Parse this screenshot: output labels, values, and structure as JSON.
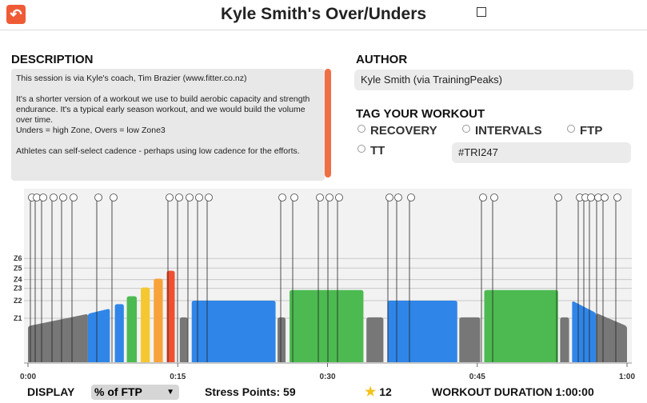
{
  "header": {
    "title": "Kyle Smith's Over/Unders"
  },
  "description": {
    "heading": "DESCRIPTION",
    "paragraphs": [
      "This session is via Kyle's coach, Tim Brazier (www.fitter.co.nz)",
      "It's a shorter version of a workout we use to build aerobic capacity and strength endurance. It's a typical early season workout, and we would build the volume over time.\nUnders = high Zone, Overs = low Zone3",
      "Athletes can self-select cadence - perhaps using low cadence for the efforts."
    ]
  },
  "author": {
    "heading": "AUTHOR",
    "name": "Kyle Smith (via TrainingPeaks)"
  },
  "tags": {
    "heading": "TAG YOUR WORKOUT",
    "options": [
      "RECOVERY",
      "INTERVALS",
      "FTP",
      "TT"
    ],
    "value": "#TRI247"
  },
  "chart_data": {
    "type": "workout",
    "xlim": [
      0,
      60
    ],
    "xticks": [
      {
        "value": 0,
        "label": "0:00"
      },
      {
        "value": 15,
        "label": "0:15"
      },
      {
        "value": 30,
        "label": "0:30"
      },
      {
        "value": 45,
        "label": "0:45"
      },
      {
        "value": 60,
        "label": "1:00"
      }
    ],
    "ylim": [
      0,
      190
    ],
    "yticks": [
      {
        "value": 50,
        "label": "Z1"
      },
      {
        "value": 70,
        "label": "Z2"
      },
      {
        "value": 84,
        "label": "Z3"
      },
      {
        "value": 94,
        "label": "Z4"
      },
      {
        "value": 107,
        "label": "Z5"
      },
      {
        "value": 118,
        "label": "Z6"
      }
    ],
    "segments": [
      {
        "start": 0,
        "end": 6,
        "power": [
          41,
          55
        ],
        "color": "#777777"
      },
      {
        "start": 6,
        "end": 8.2,
        "power": [
          55,
          61
        ],
        "color": "#2f86e8"
      },
      {
        "start": 8.7,
        "end": 9.6,
        "power": [
          66,
          66
        ],
        "color": "#2f86e8"
      },
      {
        "start": 9.9,
        "end": 10.9,
        "power": [
          75,
          75
        ],
        "color": "#4cba50"
      },
      {
        "start": 11.3,
        "end": 12.2,
        "power": [
          85,
          85
        ],
        "color": "#f5c831"
      },
      {
        "start": 12.6,
        "end": 13.5,
        "power": [
          95,
          95
        ],
        "color": "#f8a23a"
      },
      {
        "start": 13.9,
        "end": 14.7,
        "power": [
          104,
          104
        ],
        "color": "#ef5030"
      },
      {
        "start": 15.2,
        "end": 16,
        "power": [
          51,
          51
        ],
        "color": "#777777"
      },
      {
        "start": 16.4,
        "end": 24.8,
        "power": [
          70,
          70
        ],
        "color": "#2f86e8"
      },
      {
        "start": 25,
        "end": 25.8,
        "power": [
          51,
          51
        ],
        "color": "#777777"
      },
      {
        "start": 26.2,
        "end": 33.6,
        "power": [
          82,
          82
        ],
        "color": "#4cba50"
      },
      {
        "start": 33.9,
        "end": 35.6,
        "power": [
          51,
          51
        ],
        "color": "#777777"
      },
      {
        "start": 36,
        "end": 43,
        "power": [
          70,
          70
        ],
        "color": "#2f86e8"
      },
      {
        "start": 43.2,
        "end": 45.3,
        "power": [
          51,
          51
        ],
        "color": "#777777"
      },
      {
        "start": 45.7,
        "end": 53.1,
        "power": [
          82,
          82
        ],
        "color": "#4cba50"
      },
      {
        "start": 53.3,
        "end": 54.2,
        "power": [
          51,
          51
        ],
        "color": "#777777"
      },
      {
        "start": 54.5,
        "end": 56.9,
        "power": [
          70,
          56
        ],
        "color": "#2f86e8"
      },
      {
        "start": 56.9,
        "end": 60,
        "power": [
          56,
          41
        ],
        "color": "#777777"
      }
    ]
  },
  "footer": {
    "display_label": "DISPLAY",
    "display_value": "% of FTP",
    "stress_label": "Stress Points:",
    "stress_value": 59,
    "rating": 12,
    "duration_label": "WORKOUT DURATION",
    "duration_value": "1:00:00"
  }
}
